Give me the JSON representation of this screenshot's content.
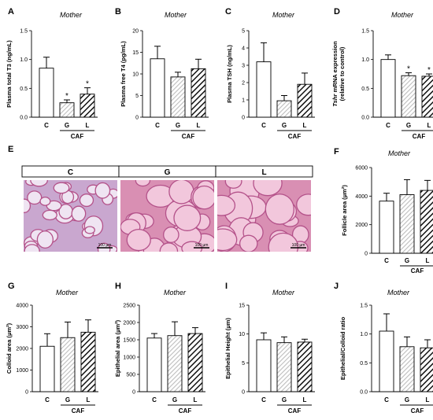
{
  "figure": {
    "panels": [
      {
        "letter": "A",
        "subtitle": "Mother",
        "ylabel": "Plasma total T3 (ng/mL)"
      },
      {
        "letter": "B",
        "subtitle": "Mother",
        "ylabel": "Plasma free T4 (pg/mL)"
      },
      {
        "letter": "C",
        "subtitle": "Mother",
        "ylabel": "Plasma TSH (ng/mL)"
      },
      {
        "letter": "D",
        "subtitle": "Mother",
        "ylabel_italic": "Tshr",
        "ylabel": " mRNA expression",
        "ylabel2": "(relative to control)"
      },
      {
        "letter": "F",
        "subtitle": "Mother",
        "ylabel": "Follicle area (µm²)"
      },
      {
        "letter": "G",
        "subtitle": "Mother",
        "ylabel": "Colloid area (µm²)"
      },
      {
        "letter": "H",
        "subtitle": "Mother",
        "ylabel": "Epithelial area (µm²)"
      },
      {
        "letter": "I",
        "subtitle": "Mother",
        "ylabel": "Epithelial Height (µm)"
      },
      {
        "letter": "J",
        "subtitle": "Mother",
        "ylabel": "Epithelial/Colloid ratio"
      }
    ],
    "group_labels": [
      "C",
      "G",
      "L"
    ],
    "caf_label": "CAF",
    "histology": {
      "letter": "E",
      "headers": [
        "C",
        "G",
        "L"
      ],
      "scale_bar": "100 µm"
    }
  },
  "chart_data": [
    {
      "type": "bar",
      "title": "Mother",
      "ylabel": "Plasma total T3 (ng/mL)",
      "categories": [
        "C",
        "G",
        "L"
      ],
      "values": [
        0.85,
        0.25,
        0.4
      ],
      "errors": [
        0.19,
        0.05,
        0.11
      ],
      "significant": [
        false,
        true,
        true
      ],
      "ylim": [
        0,
        1.5
      ],
      "yticks": [
        0.0,
        0.5,
        1.0,
        1.5
      ]
    },
    {
      "type": "bar",
      "title": "Mother",
      "ylabel": "Plasma free T4 (pg/mL)",
      "categories": [
        "C",
        "G",
        "L"
      ],
      "values": [
        13.5,
        9.3,
        11.2
      ],
      "errors": [
        2.9,
        1.1,
        2.2
      ],
      "ylim": [
        0,
        20
      ],
      "yticks": [
        0,
        5,
        10,
        15,
        20
      ]
    },
    {
      "type": "bar",
      "title": "Mother",
      "ylabel": "Plasma TSH (ng/mL)",
      "categories": [
        "C",
        "G",
        "L"
      ],
      "values": [
        3.2,
        0.95,
        1.9
      ],
      "errors": [
        1.1,
        0.3,
        0.65
      ],
      "ylim": [
        0,
        5
      ],
      "yticks": [
        0,
        1,
        2,
        3,
        4,
        5
      ]
    },
    {
      "type": "bar",
      "title": "Mother",
      "ylabel": "Tshr mRNA expression (relative to control)",
      "categories": [
        "C",
        "G",
        "L"
      ],
      "values": [
        1.0,
        0.72,
        0.71
      ],
      "errors": [
        0.08,
        0.05,
        0.04
      ],
      "significant": [
        false,
        true,
        true
      ],
      "ylim": [
        0,
        1.5
      ],
      "yticks": [
        0.0,
        0.5,
        1.0,
        1.5
      ]
    },
    {
      "type": "bar",
      "title": "Mother",
      "ylabel": "Follicle area (µm²)",
      "categories": [
        "C",
        "G",
        "L"
      ],
      "values": [
        3650,
        4100,
        4400
      ],
      "errors": [
        550,
        1050,
        700
      ],
      "ylim": [
        0,
        6000
      ],
      "yticks": [
        0,
        2000,
        4000,
        6000
      ]
    },
    {
      "type": "bar",
      "title": "Mother",
      "ylabel": "Colloid area (µm²)",
      "categories": [
        "C",
        "G",
        "L"
      ],
      "values": [
        2100,
        2500,
        2750
      ],
      "errors": [
        580,
        720,
        570
      ],
      "ylim": [
        0,
        4000
      ],
      "yticks": [
        0,
        1000,
        2000,
        3000,
        4000
      ]
    },
    {
      "type": "bar",
      "title": "Mother",
      "ylabel": "Epithelial area (µm²)",
      "categories": [
        "C",
        "G",
        "L"
      ],
      "values": [
        1550,
        1620,
        1680
      ],
      "errors": [
        130,
        400,
        170
      ],
      "ylim": [
        0,
        2500
      ],
      "yticks": [
        0,
        500,
        1000,
        1500,
        2000,
        2500
      ]
    },
    {
      "type": "bar",
      "title": "Mother",
      "ylabel": "Epithelial Height (µm)",
      "categories": [
        "C",
        "G",
        "L"
      ],
      "values": [
        9.0,
        8.5,
        8.6
      ],
      "errors": [
        1.2,
        1.0,
        0.5
      ],
      "ylim": [
        0,
        15
      ],
      "yticks": [
        0,
        5,
        10,
        15
      ]
    },
    {
      "type": "bar",
      "title": "Mother",
      "ylabel": "Epithelial/Colloid ratio",
      "categories": [
        "C",
        "G",
        "L"
      ],
      "values": [
        1.05,
        0.78,
        0.76
      ],
      "errors": [
        0.3,
        0.17,
        0.14
      ],
      "ylim": [
        0,
        1.5
      ],
      "yticks": [
        0.0,
        0.5,
        1.0,
        1.5
      ]
    }
  ],
  "colors": {
    "control": "#ffffff",
    "gray_hatch": "#c8c8c8",
    "black_hatch": "#1a1a1a",
    "axis": "#000000",
    "tissue_bg": "#e8b3c8",
    "tissue_stroke": "#c05a86"
  }
}
